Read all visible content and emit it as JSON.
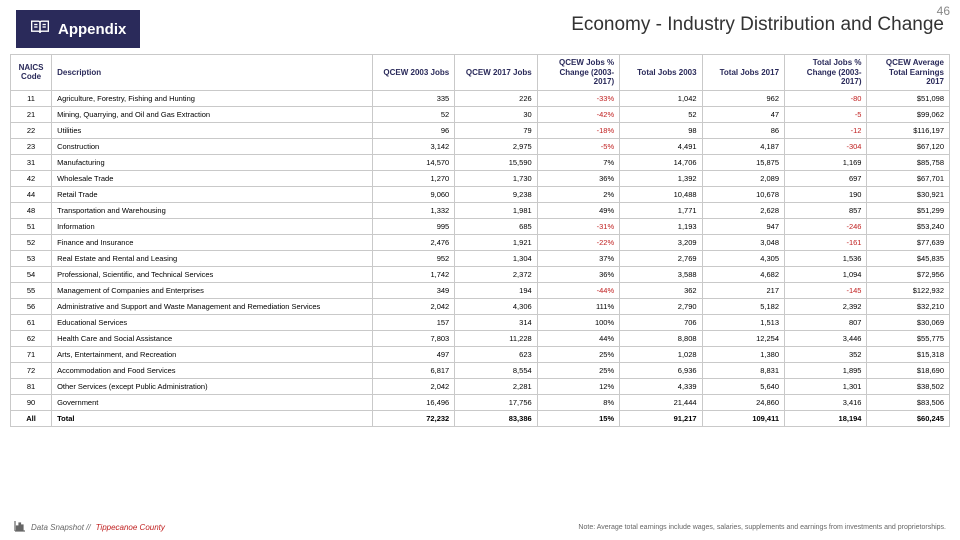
{
  "page_number": "46",
  "header": {
    "appendix_label": "Appendix",
    "title": "Economy - Industry Distribution and Change"
  },
  "columns": [
    "NAICS Code",
    "Description",
    "QCEW 2003 Jobs",
    "QCEW 2017 Jobs",
    "QCEW Jobs % Change (2003-2017)",
    "Total Jobs 2003",
    "Total Jobs 2017",
    "Total Jobs % Change (2003-2017)",
    "QCEW Average Total Earnings 2017"
  ],
  "rows": [
    {
      "code": "11",
      "desc": "Agriculture, Forestry, Fishing and Hunting",
      "q2003": "335",
      "q2017": "226",
      "qpct": "-33%",
      "t2003": "1,042",
      "t2017": "962",
      "tpct": "-80",
      "earn": "$51,098"
    },
    {
      "code": "21",
      "desc": "Mining, Quarrying, and Oil and Gas Extraction",
      "q2003": "52",
      "q2017": "30",
      "qpct": "-42%",
      "t2003": "52",
      "t2017": "47",
      "tpct": "-5",
      "earn": "$99,062"
    },
    {
      "code": "22",
      "desc": "Utilities",
      "q2003": "96",
      "q2017": "79",
      "qpct": "-18%",
      "t2003": "98",
      "t2017": "86",
      "tpct": "-12",
      "earn": "$116,197"
    },
    {
      "code": "23",
      "desc": "Construction",
      "q2003": "3,142",
      "q2017": "2,975",
      "qpct": "-5%",
      "t2003": "4,491",
      "t2017": "4,187",
      "tpct": "-304",
      "earn": "$67,120"
    },
    {
      "code": "31",
      "desc": "Manufacturing",
      "q2003": "14,570",
      "q2017": "15,590",
      "qpct": "7%",
      "t2003": "14,706",
      "t2017": "15,875",
      "tpct": "1,169",
      "earn": "$85,758"
    },
    {
      "code": "42",
      "desc": "Wholesale Trade",
      "q2003": "1,270",
      "q2017": "1,730",
      "qpct": "36%",
      "t2003": "1,392",
      "t2017": "2,089",
      "tpct": "697",
      "earn": "$67,701"
    },
    {
      "code": "44",
      "desc": "Retail Trade",
      "q2003": "9,060",
      "q2017": "9,238",
      "qpct": "2%",
      "t2003": "10,488",
      "t2017": "10,678",
      "tpct": "190",
      "earn": "$30,921"
    },
    {
      "code": "48",
      "desc": "Transportation and Warehousing",
      "q2003": "1,332",
      "q2017": "1,981",
      "qpct": "49%",
      "t2003": "1,771",
      "t2017": "2,628",
      "tpct": "857",
      "earn": "$51,299"
    },
    {
      "code": "51",
      "desc": "Information",
      "q2003": "995",
      "q2017": "685",
      "qpct": "-31%",
      "t2003": "1,193",
      "t2017": "947",
      "tpct": "-246",
      "earn": "$53,240"
    },
    {
      "code": "52",
      "desc": "Finance and Insurance",
      "q2003": "2,476",
      "q2017": "1,921",
      "qpct": "-22%",
      "t2003": "3,209",
      "t2017": "3,048",
      "tpct": "-161",
      "earn": "$77,639"
    },
    {
      "code": "53",
      "desc": "Real Estate and Rental and Leasing",
      "q2003": "952",
      "q2017": "1,304",
      "qpct": "37%",
      "t2003": "2,769",
      "t2017": "4,305",
      "tpct": "1,536",
      "earn": "$45,835"
    },
    {
      "code": "54",
      "desc": "Professional, Scientific, and Technical Services",
      "q2003": "1,742",
      "q2017": "2,372",
      "qpct": "36%",
      "t2003": "3,588",
      "t2017": "4,682",
      "tpct": "1,094",
      "earn": "$72,956"
    },
    {
      "code": "55",
      "desc": "Management of Companies and Enterprises",
      "q2003": "349",
      "q2017": "194",
      "qpct": "-44%",
      "t2003": "362",
      "t2017": "217",
      "tpct": "-145",
      "earn": "$122,932"
    },
    {
      "code": "56",
      "desc": "Administrative and Support and Waste Management and Remediation Services",
      "q2003": "2,042",
      "q2017": "4,306",
      "qpct": "111%",
      "t2003": "2,790",
      "t2017": "5,182",
      "tpct": "2,392",
      "earn": "$32,210"
    },
    {
      "code": "61",
      "desc": "Educational Services",
      "q2003": "157",
      "q2017": "314",
      "qpct": "100%",
      "t2003": "706",
      "t2017": "1,513",
      "tpct": "807",
      "earn": "$30,069"
    },
    {
      "code": "62",
      "desc": "Health Care and Social Assistance",
      "q2003": "7,803",
      "q2017": "11,228",
      "qpct": "44%",
      "t2003": "8,808",
      "t2017": "12,254",
      "tpct": "3,446",
      "earn": "$55,775"
    },
    {
      "code": "71",
      "desc": "Arts, Entertainment, and Recreation",
      "q2003": "497",
      "q2017": "623",
      "qpct": "25%",
      "t2003": "1,028",
      "t2017": "1,380",
      "tpct": "352",
      "earn": "$15,318"
    },
    {
      "code": "72",
      "desc": "Accommodation and Food Services",
      "q2003": "6,817",
      "q2017": "8,554",
      "qpct": "25%",
      "t2003": "6,936",
      "t2017": "8,831",
      "tpct": "1,895",
      "earn": "$18,690"
    },
    {
      "code": "81",
      "desc": "Other Services (except Public Administration)",
      "q2003": "2,042",
      "q2017": "2,281",
      "qpct": "12%",
      "t2003": "4,339",
      "t2017": "5,640",
      "tpct": "1,301",
      "earn": "$38,502"
    },
    {
      "code": "90",
      "desc": "Government",
      "q2003": "16,496",
      "q2017": "17,756",
      "qpct": "8%",
      "t2003": "21,444",
      "t2017": "24,860",
      "tpct": "3,416",
      "earn": "$83,506"
    },
    {
      "code": "All",
      "desc": "Total",
      "q2003": "72,232",
      "q2017": "83,386",
      "qpct": "15%",
      "t2003": "91,217",
      "t2017": "109,411",
      "tpct": "18,194",
      "earn": "$60,245"
    }
  ],
  "footer": {
    "brand_prefix": "Data Snapshot //",
    "brand_county": "Tippecanoe County",
    "note": "Note: Average total earnings include wages, salaries, supplements and earnings from investments and proprietorships."
  },
  "colors": {
    "header_bg": "#2a2a5a",
    "neg": "#c02020"
  }
}
